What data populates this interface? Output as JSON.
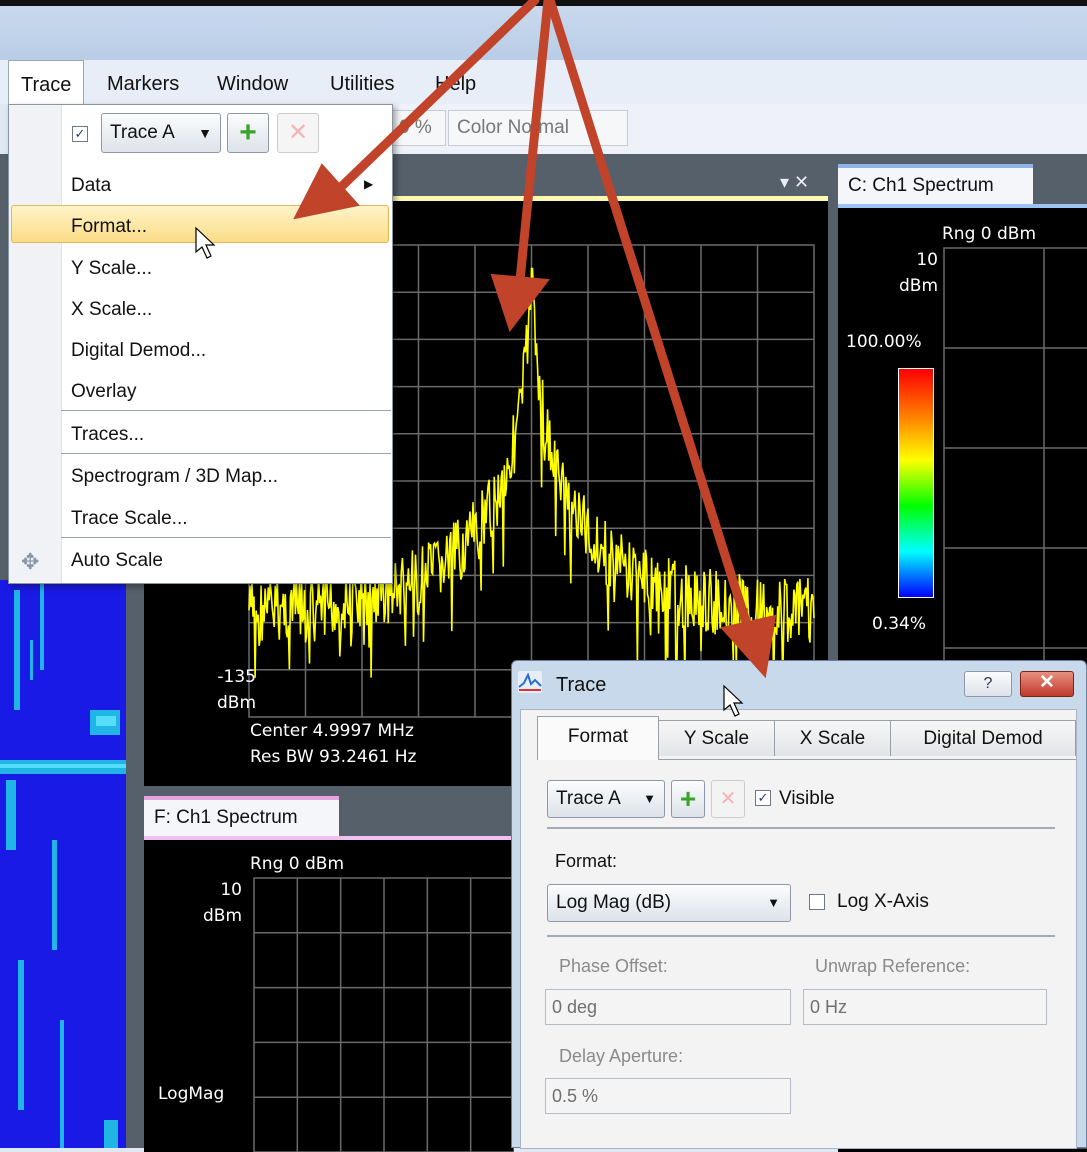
{
  "menubar": {
    "items": [
      "Trace",
      "Markers",
      "Window",
      "Utilities",
      "Help"
    ]
  },
  "toolbar": {
    "percent": "0 %",
    "color_normal": "Color Normal"
  },
  "trace_menu": {
    "trace_selector": "Trace A",
    "items": [
      "Data",
      "Format...",
      "Y Scale...",
      "X Scale...",
      "Digital Demod...",
      "Overlay",
      "Traces...",
      "Spectrogram / 3D Map...",
      "Trace Scale...",
      "Auto Scale"
    ]
  },
  "pane_a": {
    "bottom_value": "-135",
    "bottom_unit": "dBm",
    "center": "Center 4.9997 MHz",
    "res_bw": "Res BW 93.2461  Hz"
  },
  "pane_c": {
    "tab": "C: Ch1 Spectrum",
    "rng": "Rng 0 dBm",
    "top_value": "10",
    "top_unit": "dBm",
    "pct_high": "100.00%",
    "pct_low": "0.34%"
  },
  "pane_f": {
    "tab": "F: Ch1 Spectrum",
    "rng": "Rng 0 dBm",
    "top_value": "10",
    "top_unit": "dBm",
    "scale": "LogMag"
  },
  "dialog": {
    "title": "Trace",
    "help": "?",
    "tabs": [
      "Format",
      "Y Scale",
      "X Scale",
      "Digital Demod"
    ],
    "trace_selector": "Trace A",
    "visible_label": "Visible",
    "format_label": "Format:",
    "format_value": "Log Mag (dB)",
    "log_x_label": "Log X-Axis",
    "phase_offset_label": "Phase Offset:",
    "phase_offset_value": "0 deg",
    "unwrap_label": "Unwrap Reference:",
    "unwrap_value": "0 Hz",
    "delay_label": "Delay Aperture:",
    "delay_value": "0.5 %"
  },
  "colors": {
    "trace": "#ffff00",
    "arrow": "#c0432a",
    "highlight": "#fbdd87"
  }
}
